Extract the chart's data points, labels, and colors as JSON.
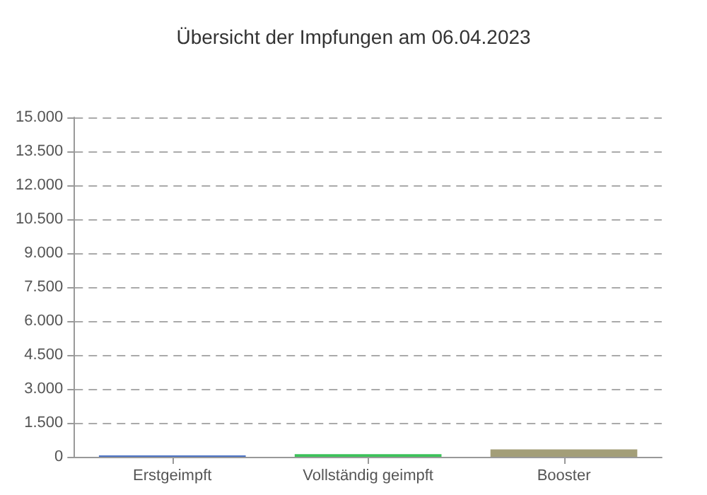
{
  "chart_data": {
    "type": "bar",
    "title": "Übersicht der Impfungen am 06.04.2023",
    "categories": [
      "Erstgeimpft",
      "Vollständig geimpft",
      "Booster"
    ],
    "values": [
      60,
      120,
      330
    ],
    "colors": [
      "#4a72c4",
      "#3cc25a",
      "#a39e78"
    ],
    "ylim": [
      0,
      15000
    ],
    "yticks": [
      {
        "value": 0,
        "label": "0"
      },
      {
        "value": 1500,
        "label": "1.500"
      },
      {
        "value": 3000,
        "label": "3.000"
      },
      {
        "value": 4500,
        "label": "4.500"
      },
      {
        "value": 6000,
        "label": "6.000"
      },
      {
        "value": 7500,
        "label": "7.500"
      },
      {
        "value": 9000,
        "label": "9.000"
      },
      {
        "value": 10500,
        "label": "10.500"
      },
      {
        "value": 12000,
        "label": "12.000"
      },
      {
        "value": 13500,
        "label": "13.500"
      },
      {
        "value": 15000,
        "label": "15.000"
      }
    ],
    "grid": "y"
  }
}
